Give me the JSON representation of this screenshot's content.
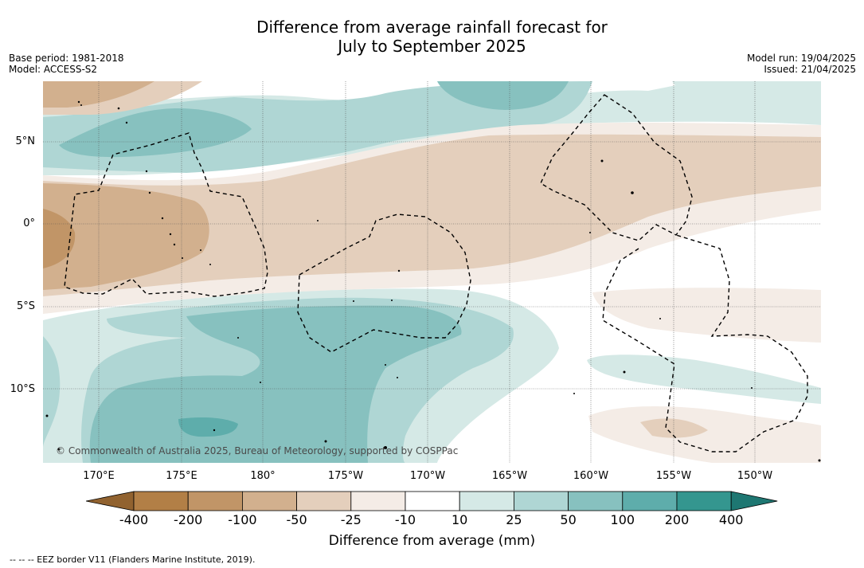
{
  "title": {
    "line1": "Difference from average rainfall forecast for",
    "line2": "July to September 2025"
  },
  "meta_left": {
    "base_period": "Base period: 1981-2018",
    "model": "Model: ACCESS-S2"
  },
  "meta_right": {
    "model_run": "Model run: 19/04/2025",
    "issued": "Issued: 21/04/2025"
  },
  "map": {
    "lat_labels": [
      "5°N",
      "0°",
      "5°S",
      "10°S"
    ],
    "lon_labels": [
      "170°E",
      "175°E",
      "180°",
      "175°W",
      "170°W",
      "165°W",
      "160°W",
      "155°W",
      "150°W"
    ],
    "credit": "© Commonwealth of Australia 2025, Bureau of Meteorology, supported by COSPPac",
    "background": "#ffffff",
    "gridline_color": "#555555",
    "eez_color": "#000000"
  },
  "colorbar": {
    "title": "Difference from average (mm)",
    "ticks": [
      "-400",
      "-200",
      "-100",
      "-50",
      "-25",
      "-10",
      "10",
      "25",
      "50",
      "100",
      "200",
      "400"
    ],
    "colors": [
      "#91622f",
      "#b27f46",
      "#c19567",
      "#d2b08e",
      "#e4cfbc",
      "#f4ece6",
      "#ffffff",
      "#d5e9e6",
      "#afd6d4",
      "#87c1bf",
      "#5eadab",
      "#34968f",
      "#1e7772"
    ]
  },
  "footer": "--  --  -- EEZ border V11 (Flanders Marine Institute, 2019)."
}
